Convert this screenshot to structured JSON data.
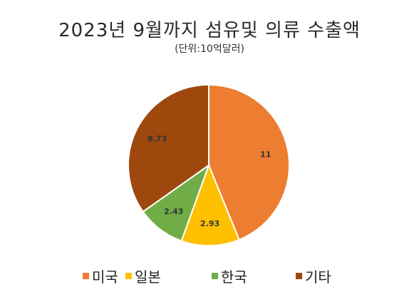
{
  "chart_data": {
    "type": "pie",
    "title": "2023년 9월까지 섬유및 의류 수출액",
    "subtitle": "(단위:10억달러)",
    "legend_position": "bottom",
    "slices": [
      {
        "label": "미국",
        "value": 11,
        "value_label": "11",
        "color": "#ED7D31"
      },
      {
        "label": "일본",
        "value": 2.93,
        "value_label": "2.93",
        "color": "#FFC000"
      },
      {
        "label": "한국",
        "value": 2.43,
        "value_label": "2.43",
        "color": "#70AD47"
      },
      {
        "label": "기타",
        "value": 8.73,
        "value_label": "8.73",
        "color": "#9E480E"
      }
    ]
  }
}
